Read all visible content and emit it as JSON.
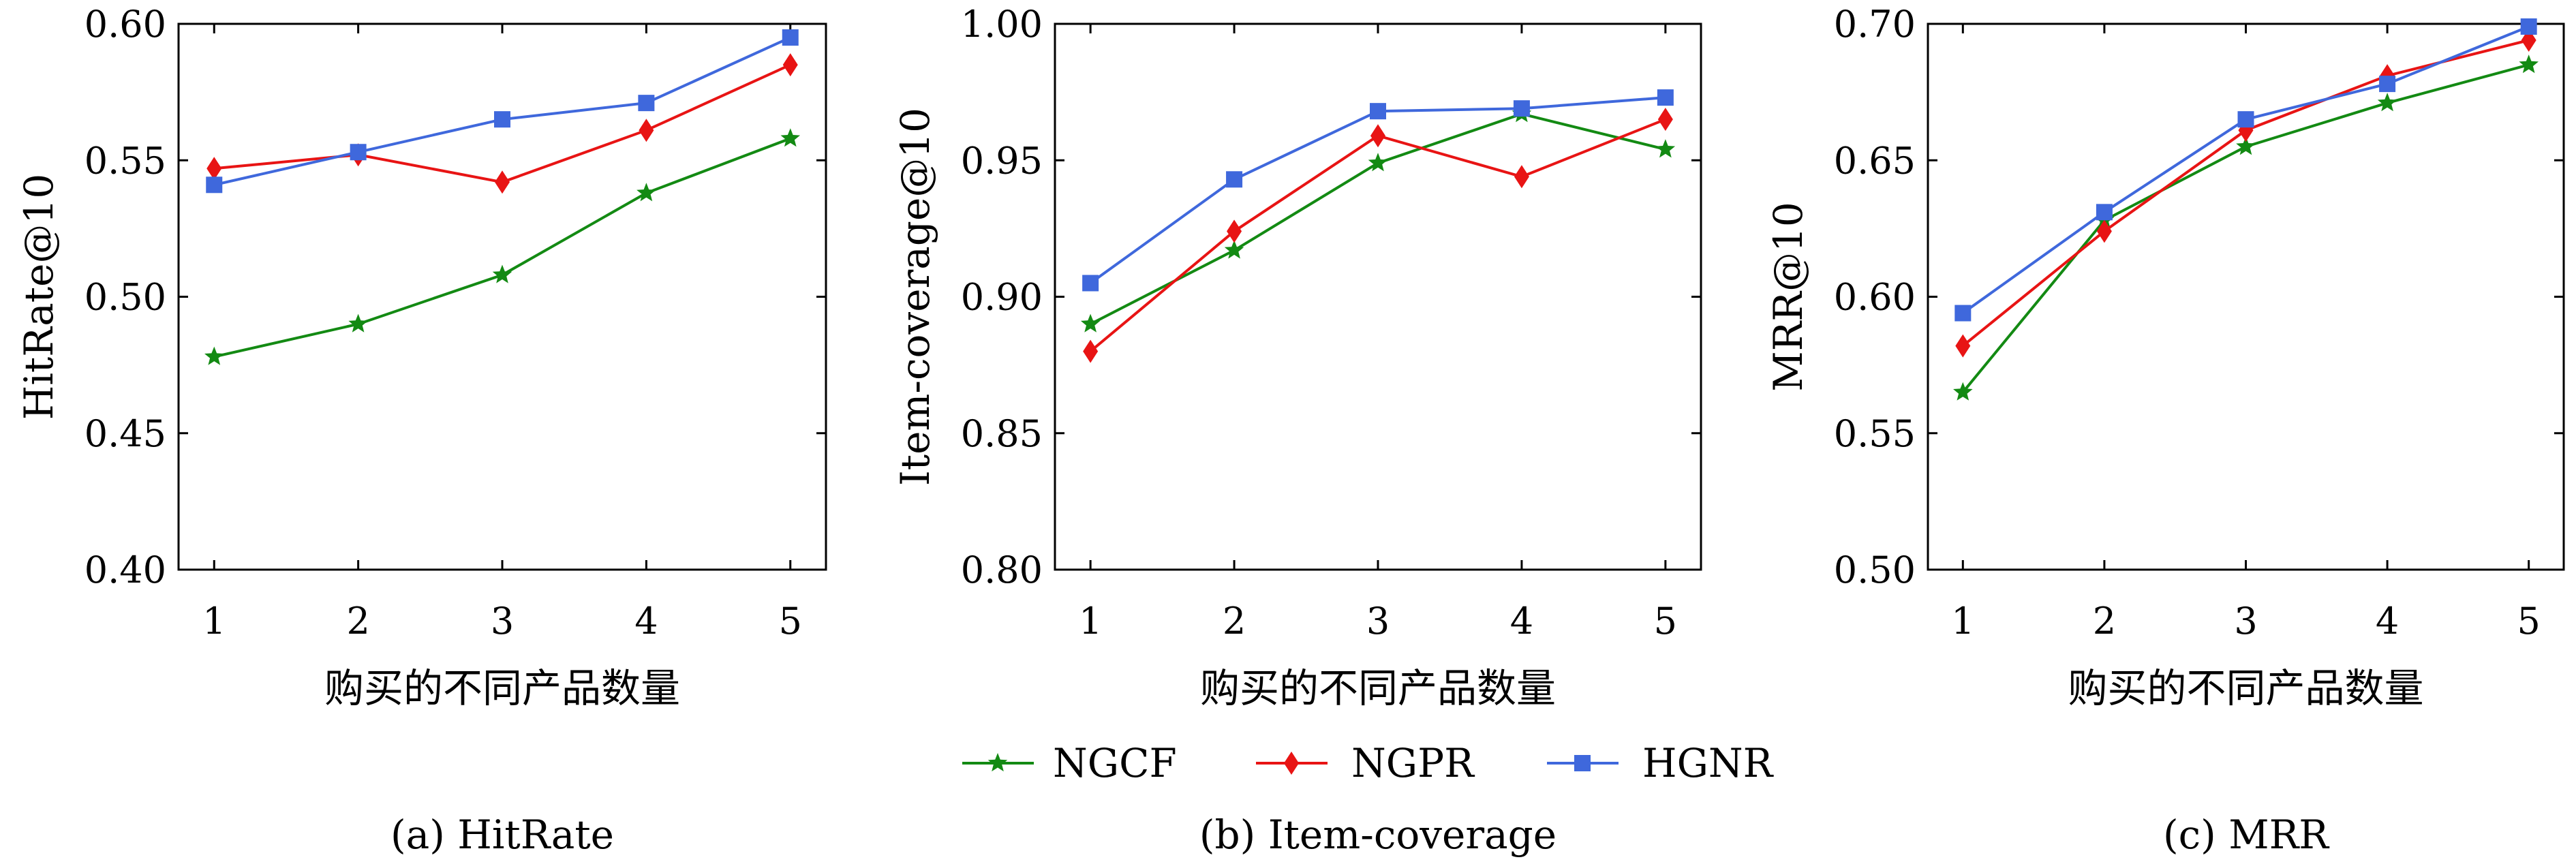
{
  "series_styles": [
    {
      "name": "NGCF",
      "color": "#138a13",
      "marker": "star"
    },
    {
      "name": "NGPR",
      "color": "#e81414",
      "marker": "diamond"
    },
    {
      "name": "HGNR",
      "color": "#3f68dc",
      "marker": "square"
    }
  ],
  "legend": {
    "placement": "bottom-center",
    "items": [
      "NGCF",
      "NGPR",
      "HGNR"
    ]
  },
  "chart_data": [
    {
      "type": "line",
      "caption": "(a) HitRate",
      "xlabel": "购买的不同产品数量",
      "ylabel": "HitRate@10",
      "x": [
        1,
        2,
        3,
        4,
        5
      ],
      "xticks": [
        "1",
        "2",
        "3",
        "4",
        "5"
      ],
      "ylim": [
        0.4,
        0.6
      ],
      "yticks": [
        "0.40",
        "0.45",
        "0.50",
        "0.55",
        "0.60"
      ],
      "grid": false,
      "series": [
        {
          "name": "NGCF",
          "values": [
            0.478,
            0.49,
            0.508,
            0.538,
            0.558
          ]
        },
        {
          "name": "NGPR",
          "values": [
            0.547,
            0.552,
            0.542,
            0.561,
            0.585
          ]
        },
        {
          "name": "HGNR",
          "values": [
            0.541,
            0.553,
            0.565,
            0.571,
            0.595
          ]
        }
      ]
    },
    {
      "type": "line",
      "caption": "(b) Item-coverage",
      "xlabel": "购买的不同产品数量",
      "ylabel": "Item-coverage@10",
      "x": [
        1,
        2,
        3,
        4,
        5
      ],
      "xticks": [
        "1",
        "2",
        "3",
        "4",
        "5"
      ],
      "ylim": [
        0.8,
        1.0
      ],
      "yticks": [
        "0.80",
        "0.85",
        "0.90",
        "0.95",
        "1.00"
      ],
      "grid": false,
      "series": [
        {
          "name": "NGCF",
          "values": [
            0.89,
            0.917,
            0.949,
            0.967,
            0.954
          ]
        },
        {
          "name": "NGPR",
          "values": [
            0.88,
            0.924,
            0.959,
            0.944,
            0.965
          ]
        },
        {
          "name": "HGNR",
          "values": [
            0.905,
            0.943,
            0.968,
            0.969,
            0.973
          ]
        }
      ]
    },
    {
      "type": "line",
      "caption": "(c) MRR",
      "xlabel": "购买的不同产品数量",
      "ylabel": "MRR@10",
      "x": [
        1,
        2,
        3,
        4,
        5
      ],
      "xticks": [
        "1",
        "2",
        "3",
        "4",
        "5"
      ],
      "ylim": [
        0.5,
        0.7
      ],
      "yticks": [
        "0.50",
        "0.55",
        "0.60",
        "0.65",
        "0.70"
      ],
      "grid": false,
      "series": [
        {
          "name": "NGCF",
          "values": [
            0.565,
            0.628,
            0.655,
            0.671,
            0.685
          ]
        },
        {
          "name": "NGPR",
          "values": [
            0.582,
            0.624,
            0.661,
            0.681,
            0.694
          ]
        },
        {
          "name": "HGNR",
          "values": [
            0.594,
            0.631,
            0.665,
            0.678,
            0.699
          ]
        }
      ]
    }
  ]
}
